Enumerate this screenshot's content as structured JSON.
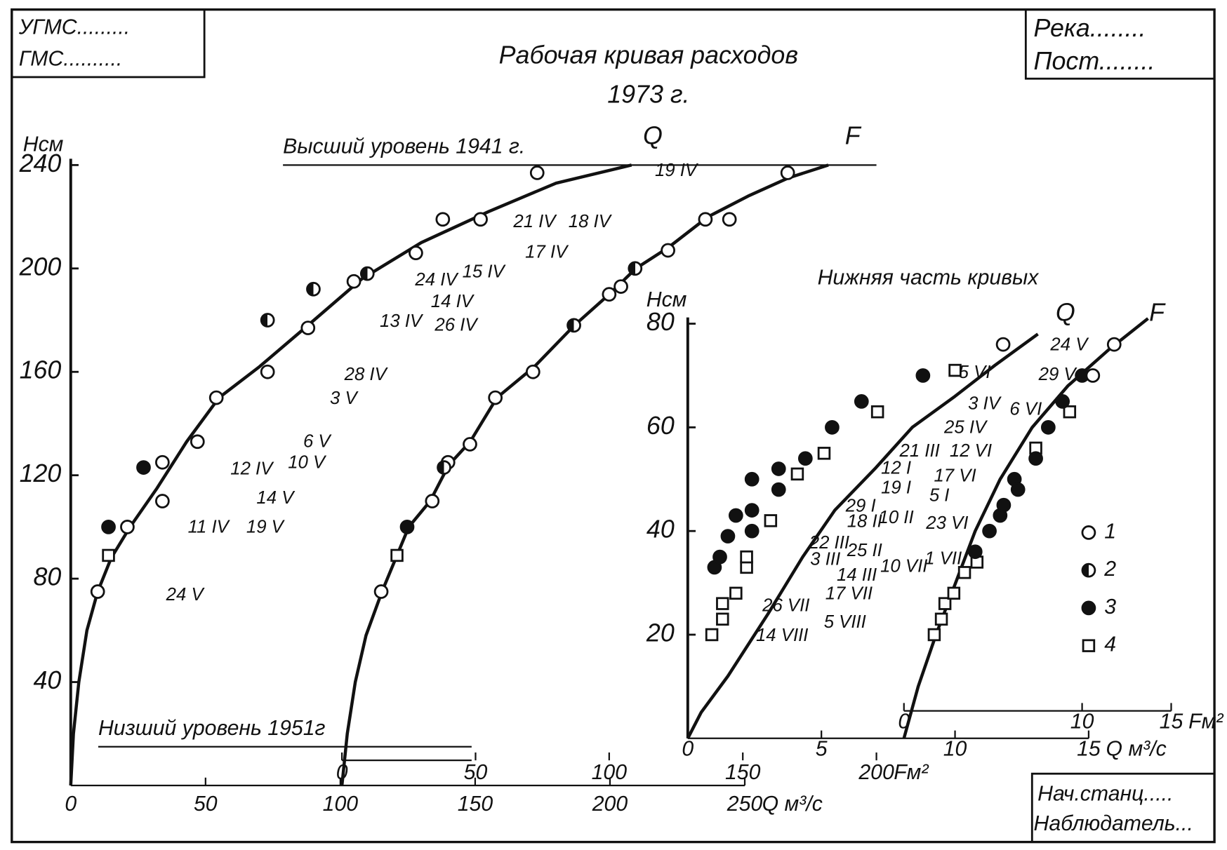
{
  "header": {
    "left": [
      "УГМС.........",
      "ГМС.........."
    ],
    "right": [
      "Река........",
      "Пост........"
    ],
    "footer": [
      "Нач.станц.....",
      "Наблюдатель..."
    ]
  },
  "chart_data": [
    {
      "type": "scatter",
      "title": "Рабочая кривая расходов",
      "subtitle": "1973 г.",
      "ylabel": "Нсм",
      "xlabel": "Q м³/с",
      "x2label": "Fм²",
      "ylim": [
        0,
        240
      ],
      "yticks": [
        40,
        80,
        120,
        160,
        200,
        240
      ],
      "xlim": [
        0,
        250
      ],
      "xticks": [
        0,
        50,
        100,
        150,
        200,
        250
      ],
      "x2lim": [
        0,
        200
      ],
      "x2ticks": [
        0,
        50,
        100,
        150,
        200
      ],
      "levels": [
        {
          "label": "Высший уровень 1941 г.",
          "value": 240
        },
        {
          "label": "Низший уровень 1951г",
          "value": 15
        }
      ],
      "series": [
        {
          "name": "Q",
          "marker": "line",
          "axis": "x",
          "x": [
            0,
            1,
            3,
            6,
            10,
            15,
            22,
            32,
            43,
            55,
            70,
            88,
            108,
            130,
            155,
            180,
            208
          ],
          "y": [
            0,
            20,
            40,
            60,
            75,
            88,
            100,
            115,
            133,
            150,
            162,
            178,
            196,
            210,
            222,
            233,
            240
          ]
        },
        {
          "name": "F",
          "marker": "line",
          "axis": "x2",
          "x": [
            0,
            2,
            5,
            9,
            15,
            25,
            33,
            40,
            48,
            58,
            72,
            87,
            100,
            110,
            122,
            137,
            152,
            167,
            182
          ],
          "y": [
            0,
            20,
            40,
            58,
            75,
            100,
            110,
            124,
            133,
            150,
            162,
            178,
            190,
            200,
            208,
            220,
            228,
            235,
            240
          ]
        },
        {
          "marker": "open",
          "axis": "x",
          "x": [
            10,
            21,
            34,
            34,
            47,
            54,
            73,
            88,
            105,
            128,
            138,
            152,
            173
          ],
          "y": [
            75,
            100,
            110,
            125,
            133,
            150,
            160,
            177,
            195,
            206,
            219,
            219,
            237
          ]
        },
        {
          "marker": "square",
          "axis": "x",
          "x": [
            14
          ],
          "y": [
            89
          ]
        },
        {
          "marker": "solid",
          "axis": "x",
          "x": [
            14,
            27
          ],
          "y": [
            100,
            123
          ]
        },
        {
          "marker": "half",
          "axis": "x",
          "x": [
            73,
            90,
            110
          ],
          "y": [
            180,
            192,
            198
          ]
        },
        {
          "marker": "open",
          "axis": "x2",
          "x": [
            14.7,
            33.8,
            39.7,
            47.9,
            57.4,
            71.5,
            100,
            104.4,
            122,
            136,
            145,
            166.8
          ],
          "y": [
            75,
            110,
            125,
            132,
            150,
            160,
            190,
            193,
            207,
            219,
            219,
            237
          ]
        },
        {
          "marker": "square",
          "axis": "x2",
          "x": [
            20.6
          ],
          "y": [
            89
          ]
        },
        {
          "marker": "solid",
          "axis": "x2",
          "x": [
            24.4
          ],
          "y": [
            100
          ]
        },
        {
          "marker": "half",
          "axis": "x2",
          "x": [
            38.2,
            86.8,
            109.7
          ],
          "y": [
            123,
            178,
            200
          ]
        }
      ],
      "annotations": [
        "19 IV",
        "21 IV",
        "18 IV",
        "17 IV",
        "15 IV",
        "24 IV",
        "14 IV",
        "13 IV",
        "26 IV",
        "28 IV",
        "3 V",
        "6 V",
        "12 IV",
        "10 V",
        "14 V",
        "11 IV",
        "19 V",
        "24 V"
      ]
    },
    {
      "type": "scatter",
      "title": "Нижняя часть кривых",
      "ylabel": "Нсм",
      "xlabel": "Q м³/с",
      "x2label": "Fм²",
      "ylim": [
        0,
        80
      ],
      "yticks": [
        20,
        40,
        60,
        80
      ],
      "xlim": [
        0,
        15
      ],
      "xticks": [
        0,
        5,
        10,
        15
      ],
      "x2lim": [
        0,
        15
      ],
      "x2ticks": [
        0,
        10,
        15
      ],
      "series": [
        {
          "name": "Q",
          "marker": "line",
          "axis": "x",
          "x": [
            0,
            0.5,
            1.5,
            3,
            4.3,
            5.5,
            7,
            8.4,
            10,
            11.5,
            13.1
          ],
          "y": [
            0,
            5,
            12,
            24,
            35,
            44,
            52,
            60,
            66,
            72,
            78
          ]
        },
        {
          "name": "F",
          "marker": "line",
          "axis": "x2",
          "x": [
            0,
            0.8,
            1.8,
            2.9,
            4,
            5.4,
            7.2,
            9.2,
            11.5,
            13.7
          ],
          "y": [
            0,
            10,
            20,
            30,
            40,
            50,
            60,
            68,
            75,
            81
          ]
        },
        {
          "marker": "open",
          "axis": "x",
          "x": [
            11.8
          ],
          "y": [
            76
          ]
        },
        {
          "marker": "solid",
          "axis": "x",
          "x": [
            1.0,
            1.2,
            1.5,
            1.8,
            2.4,
            2.4,
            2.4,
            3.4,
            3.4,
            4.4,
            5.4,
            6.5,
            8.8
          ],
          "y": [
            33,
            35,
            39,
            43,
            50,
            44,
            40,
            52,
            48,
            54,
            60,
            65,
            70
          ]
        },
        {
          "marker": "square",
          "axis": "x",
          "x": [
            0.9,
            1.3,
            1.3,
            1.8,
            2.2,
            2.2,
            3.1,
            4.1,
            5.1,
            7.1,
            10
          ],
          "y": [
            20,
            23,
            26,
            28,
            33,
            35,
            42,
            51,
            55,
            63,
            71
          ]
        },
        {
          "marker": "square",
          "axis": "x2",
          "x": [
            1.7,
            2.1,
            2.3,
            2.8,
            3.4,
            4.1,
            7.4,
            9.3
          ],
          "y": [
            20,
            23,
            26,
            28,
            32,
            34,
            56,
            63
          ]
        },
        {
          "marker": "solid",
          "axis": "x2",
          "x": [
            4,
            4.8,
            5.4,
            5.6,
            6.2,
            6.4,
            7.4,
            8.1,
            8.9,
            10
          ],
          "y": [
            36,
            40,
            43,
            45,
            50,
            48,
            54,
            60,
            65,
            70
          ]
        },
        {
          "marker": "open",
          "axis": "x2",
          "x": [
            10.6,
            11.8
          ],
          "y": [
            70,
            76
          ]
        }
      ],
      "legend": [
        {
          "label": "1",
          "marker": "open"
        },
        {
          "label": "2",
          "marker": "half"
        },
        {
          "label": "3",
          "marker": "solid"
        },
        {
          "label": "4",
          "marker": "square"
        }
      ],
      "annotations": [
        "24 V",
        "5 VI",
        "29 V",
        "3 IV",
        "6 VI",
        "25 IV",
        "21 III",
        "12 VI",
        "12 I",
        "17 VI",
        "19 I",
        "5 I",
        "29 I",
        "18 II",
        "10 II",
        "23 VI",
        "22 III",
        "25 II",
        "3 III",
        "14 III",
        "10 VII",
        "1 VII",
        "17 VII",
        "26 VII",
        "5 VIII",
        "14 VIII"
      ]
    }
  ]
}
